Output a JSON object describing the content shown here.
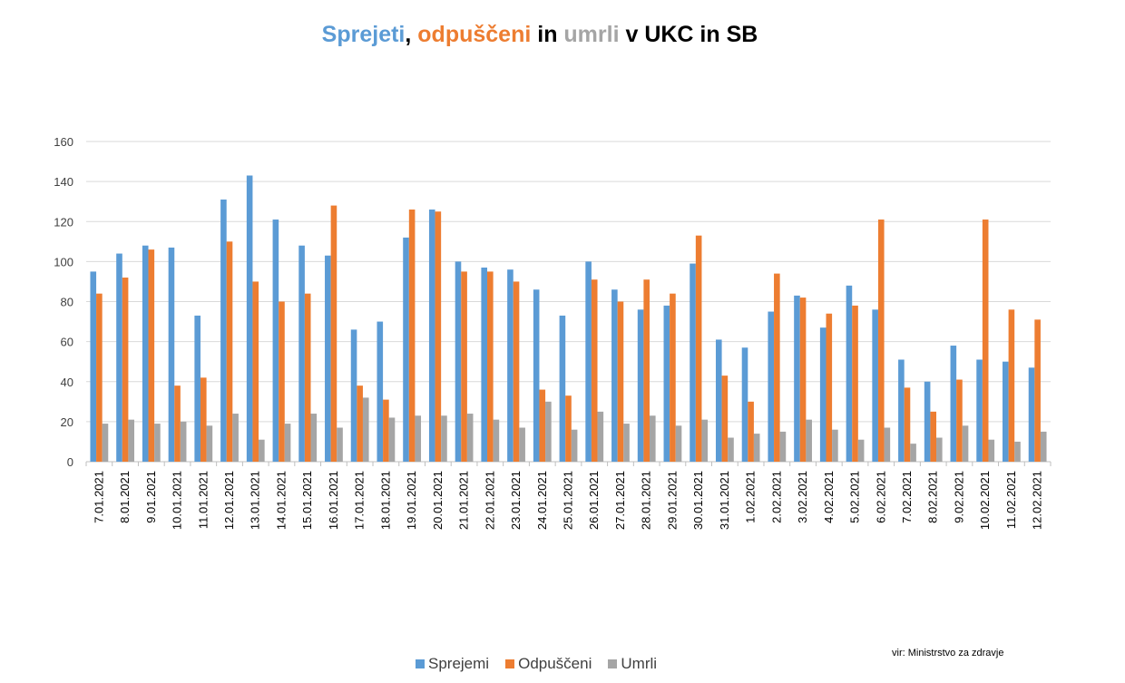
{
  "title": {
    "parts": [
      {
        "text": "Sprejeti",
        "color": "#5b9bd5"
      },
      {
        "text": ", ",
        "color": "#000000"
      },
      {
        "text": "odpuščeni",
        "color": "#ed7d31"
      },
      {
        "text": " in ",
        "color": "#000000"
      },
      {
        "text": "umrli",
        "color": "#a5a5a5"
      },
      {
        "text": " v UKC in SB",
        "color": "#000000"
      }
    ]
  },
  "source": "vir: Ministrstvo za zdravje",
  "chart_data": {
    "type": "bar",
    "title": "Sprejeti, odpuščeni in umrli v UKC in SB",
    "xlabel": "",
    "ylabel": "",
    "ylim": [
      0,
      160
    ],
    "yticks": [
      0,
      20,
      40,
      60,
      80,
      100,
      120,
      140,
      160
    ],
    "grid": true,
    "legend_position": "bottom",
    "categories": [
      "7.01.2021",
      "8.01.2021",
      "9.01.2021",
      "10.01.2021",
      "11.01.2021",
      "12.01.2021",
      "13.01.2021",
      "14.01.2021",
      "15.01.2021",
      "16.01.2021",
      "17.01.2021",
      "18.01.2021",
      "19.01.2021",
      "20.01.2021",
      "21.01.2021",
      "22.01.2021",
      "23.01.2021",
      "24.01.2021",
      "25.01.2021",
      "26.01.2021",
      "27.01.2021",
      "28.01.2021",
      "29.01.2021",
      "30.01.2021",
      "31.01.2021",
      "1.02.2021",
      "2.02.2021",
      "3.02.2021",
      "4.02.2021",
      "5.02.2021",
      "6.02.2021",
      "7.02.2021",
      "8.02.2021",
      "9.02.2021",
      "10.02.2021",
      "11.02.2021",
      "12.02.2021"
    ],
    "series": [
      {
        "name": "Sprejemi",
        "color": "#5b9bd5",
        "values": [
          95,
          104,
          108,
          107,
          73,
          131,
          143,
          121,
          108,
          103,
          66,
          70,
          112,
          126,
          100,
          97,
          96,
          86,
          73,
          100,
          86,
          76,
          78,
          99,
          61,
          57,
          75,
          83,
          67,
          88,
          76,
          51,
          40,
          58,
          51,
          50,
          47
        ]
      },
      {
        "name": "Odpuščeni",
        "color": "#ed7d31",
        "values": [
          84,
          92,
          106,
          38,
          42,
          110,
          90,
          80,
          84,
          128,
          38,
          31,
          126,
          125,
          95,
          95,
          90,
          36,
          33,
          91,
          80,
          91,
          84,
          113,
          43,
          30,
          94,
          82,
          74,
          78,
          121,
          37,
          25,
          41,
          121,
          76,
          71
        ]
      },
      {
        "name": "Umrli",
        "color": "#a5a5a5",
        "values": [
          19,
          21,
          19,
          20,
          18,
          24,
          11,
          19,
          24,
          17,
          32,
          22,
          23,
          23,
          24,
          21,
          17,
          30,
          16,
          25,
          19,
          23,
          18,
          21,
          12,
          14,
          15,
          21,
          16,
          11,
          17,
          9,
          12,
          18,
          11,
          10,
          15
        ]
      }
    ]
  }
}
